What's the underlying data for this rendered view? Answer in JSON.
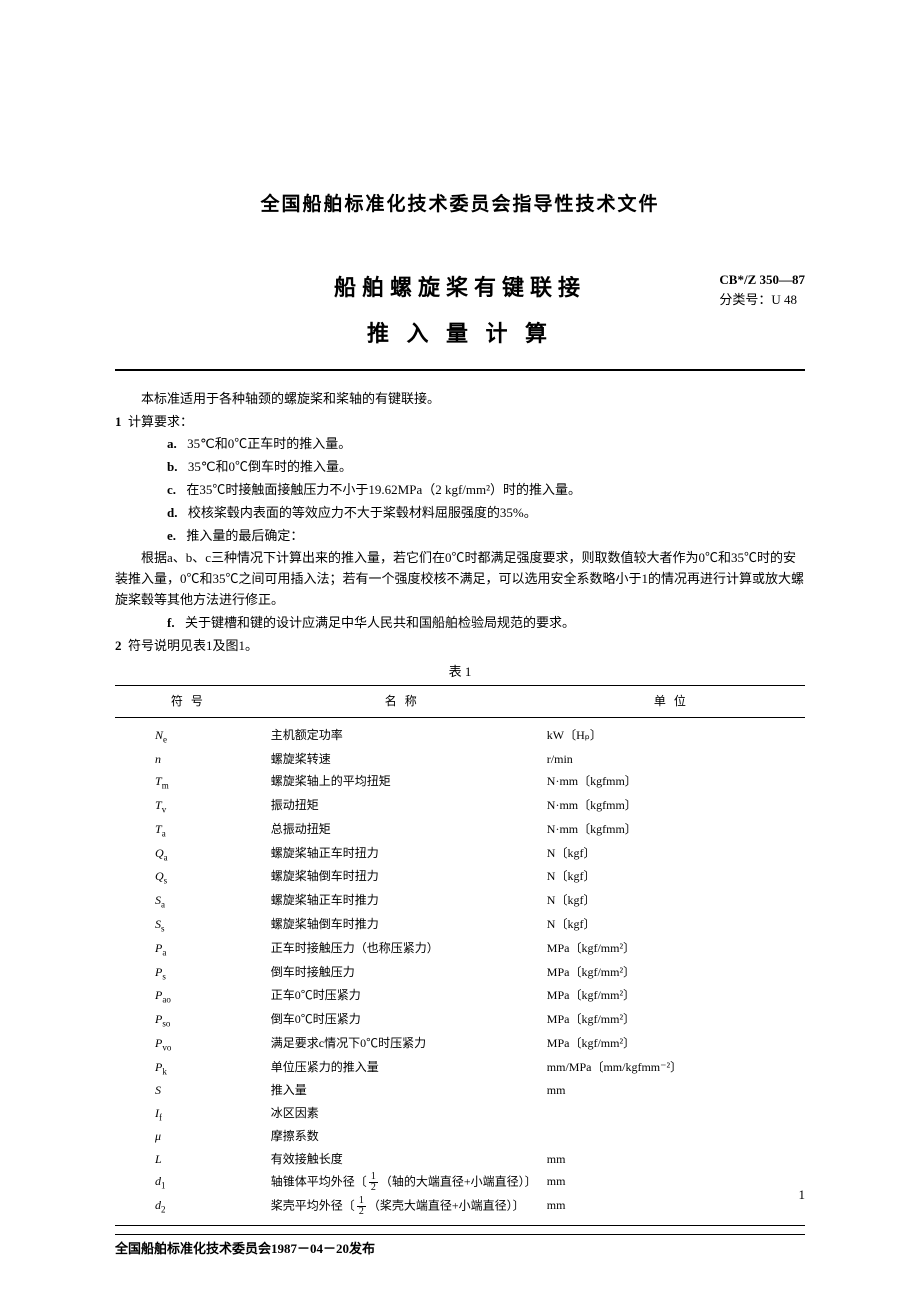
{
  "header": {
    "org": "全国船舶标准化技术委员会指导性技术文件",
    "title_line1": "船舶螺旋桨有键联接",
    "title_line2": "推 入 量 计 算",
    "code_main": "CB*/Z 350—87",
    "code_sub": "分类号：U 48"
  },
  "intro": "本标准适用于各种轴颈的螺旋桨和桨轴的有键联接。",
  "sec1": {
    "num": "1",
    "title": "计算要求：",
    "a": "35℃和0℃正车时的推入量。",
    "b": "35℃和0℃倒车时的推入量。",
    "c": "在35℃时接触面接触压力不小于19.62MPa（2 kgf/mm²）时的推入量。",
    "d": "校核桨毂内表面的等效应力不大于桨毂材料屈服强度的35%。",
    "e": "推入量的最后确定：",
    "para": "根据a、b、c三种情况下计算出来的推入量，若它们在0℃时都满足强度要求，则取数值较大者作为0℃和35℃时的安装推入量，0℃和35℃之间可用插入法；若有一个强度校核不满足，可以选用安全系数略小于1的情况再进行计算或放大螺旋桨毂等其他方法进行修正。",
    "f": "关于键槽和键的设计应满足中华人民共和国船舶检验局规范的要求。"
  },
  "sec2": {
    "num": "2",
    "title": "符号说明见表1及图1。"
  },
  "table": {
    "caption": "表 1",
    "head_sym": "符号",
    "head_name": "名称",
    "head_unit": "单位",
    "rows": [
      {
        "sym_html": "<i>N</i><span class='sub'>e</span>",
        "name": "主机额定功率",
        "unit": "kW〔Hₚ〕"
      },
      {
        "sym_html": "<i>n</i>",
        "name": "螺旋桨转速",
        "unit": "r/min"
      },
      {
        "sym_html": "<i>T</i><span class='sub'>m</span>",
        "name": "螺旋桨轴上的平均扭矩",
        "unit": "N·mm〔kgfmm〕"
      },
      {
        "sym_html": "<i>T</i><span class='sub'>v</span>",
        "name": "振动扭矩",
        "unit": "N·mm〔kgfmm〕"
      },
      {
        "sym_html": "<i>T</i><span class='sub'>a</span>",
        "name": "总振动扭矩",
        "unit": "N·mm〔kgfmm〕"
      },
      {
        "sym_html": "<i>Q</i><span class='sub'>a</span>",
        "name": "螺旋桨轴正车时扭力",
        "unit": "N〔kgf〕"
      },
      {
        "sym_html": "<i>Q</i><span class='sub'>s</span>",
        "name": "螺旋桨轴倒车时扭力",
        "unit": "N〔kgf〕"
      },
      {
        "sym_html": "<i>S</i><span class='sub'>a</span>",
        "name": "螺旋桨轴正车时推力",
        "unit": "N〔kgf〕"
      },
      {
        "sym_html": "<i>S</i><span class='sub'>s</span>",
        "name": "螺旋桨轴倒车时推力",
        "unit": "N〔kgf〕"
      },
      {
        "sym_html": "<i>P</i><span class='sub'>a</span>",
        "name": "正车时接触压力（也称压紧力）",
        "unit": "MPa〔kgf/mm²〕"
      },
      {
        "sym_html": "<i>P</i><span class='sub'>s</span>",
        "name": "倒车时接触压力",
        "unit": "MPa〔kgf/mm²〕"
      },
      {
        "sym_html": "<i>P</i><span class='sub'>ao</span>",
        "name": "正车0℃时压紧力",
        "unit": "MPa〔kgf/mm²〕"
      },
      {
        "sym_html": "<i>P</i><span class='sub'>so</span>",
        "name": "倒车0℃时压紧力",
        "unit": "MPa〔kgf/mm²〕"
      },
      {
        "sym_html": "<i>P</i><span class='sub'>vo</span>",
        "name": "满足要求c情况下0℃时压紧力",
        "unit": "MPa〔kgf/mm²〕"
      },
      {
        "sym_html": "<i>P</i><span class='sub'>k</span>",
        "name": "单位压紧力的推入量",
        "unit": "mm/MPa〔mm/kgfmm⁻²〕"
      },
      {
        "sym_html": "<i>S</i>",
        "name": "推入量",
        "unit": "mm"
      },
      {
        "sym_html": "<i>I</i><span class='sub'>f</span>",
        "name": "冰区因素",
        "unit": ""
      },
      {
        "sym_html": "<i>μ</i>",
        "name": "摩擦系数",
        "unit": ""
      },
      {
        "sym_html": "<i>L</i>",
        "name": "有效接触长度",
        "unit": "mm"
      },
      {
        "sym_html": "<i>d</i><span class='sub'>1</span>",
        "name": "轴锥体平均外径〔<span class='frac'><span class='n'>1</span><span class='d'>2</span></span>（轴的大端直径+小端直径）〕",
        "unit": "mm"
      },
      {
        "sym_html": "<i>d</i><span class='sub'>2</span>",
        "name": "桨壳平均外径〔<span class='frac'><span class='n'>1</span><span class='d'>2</span></span>（桨壳大端直径+小端直径）〕",
        "unit": "mm"
      }
    ]
  },
  "footer": "全国船舶标准化技术委员会1987－04－20发布",
  "page_num": "1"
}
